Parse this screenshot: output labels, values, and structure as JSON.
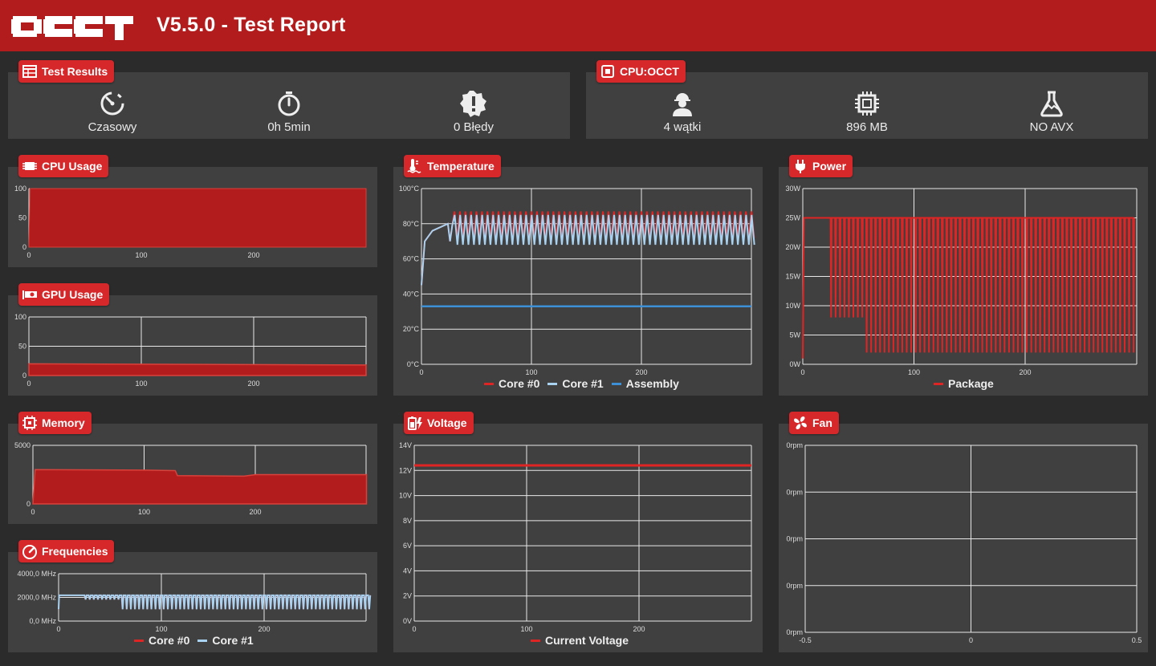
{
  "header": {
    "title": "V5.5.0 - Test Report",
    "logo": "OCCT",
    "color": "#b21c1c"
  },
  "test_results": {
    "title": "Test Results",
    "icon": "table-icon",
    "stats": [
      {
        "icon": "gauge-icon",
        "label": "Czasowy"
      },
      {
        "icon": "stopwatch-icon",
        "label": "0h 5min"
      },
      {
        "icon": "error-badge-icon",
        "label": "0 Błędy"
      }
    ]
  },
  "cpu_occt": {
    "title": "CPU:OCCT",
    "icon": "cpu-square-icon",
    "stats": [
      {
        "icon": "worker-icon",
        "label": "4 wątki"
      },
      {
        "icon": "chip-icon",
        "label": "896 MB"
      },
      {
        "icon": "flask-icon",
        "label": "NO AVX"
      }
    ]
  },
  "colors": {
    "core0": "#e02424",
    "core1": "#a9d2f0",
    "assembly": "#3d8fd6",
    "fill": "#b21c1c",
    "grid": "#e8e8e8"
  },
  "cpu_usage": {
    "title": "CPU Usage",
    "chart_data": {
      "type": "area",
      "y_ticks": [
        "100",
        "50",
        "0"
      ],
      "x_ticks": [
        "0",
        "100",
        "200"
      ],
      "xlim": [
        0,
        300
      ],
      "ylim": [
        0,
        100
      ],
      "series": [
        {
          "values": [
            [
              0,
              0
            ],
            [
              1,
              100
            ],
            [
              300,
              100
            ]
          ]
        }
      ]
    }
  },
  "gpu_usage": {
    "title": "GPU Usage",
    "chart_data": {
      "type": "area",
      "y_ticks": [
        "100",
        "50",
        "0"
      ],
      "x_ticks": [
        "0",
        "100",
        "200"
      ],
      "xlim": [
        0,
        300
      ],
      "ylim": [
        0,
        100
      ],
      "series": [
        {
          "values": [
            [
              0,
              20
            ],
            [
              300,
              18
            ]
          ]
        }
      ]
    }
  },
  "memory": {
    "title": "Memory",
    "chart_data": {
      "type": "area",
      "y_ticks": [
        "5000",
        "0"
      ],
      "x_ticks": [
        "0",
        "100",
        "200"
      ],
      "xlim": [
        0,
        300
      ],
      "ylim": [
        0,
        5800
      ],
      "series": [
        {
          "values": [
            [
              0,
              0
            ],
            [
              2,
              3400
            ],
            [
              100,
              3350
            ],
            [
              128,
              3300
            ],
            [
              130,
              2800
            ],
            [
              190,
              2750
            ],
            [
              200,
              2900
            ],
            [
              300,
              2900
            ]
          ]
        }
      ]
    }
  },
  "frequencies": {
    "title": "Frequencies",
    "chart_data": {
      "type": "line",
      "y_ticks": [
        "4000,0 MHz",
        "2000,0 MHz",
        "0,0 MHz"
      ],
      "x_ticks": [
        "0",
        "100",
        "200"
      ],
      "xlim": [
        0,
        300
      ],
      "ylim": [
        0,
        4400
      ],
      "series": [
        {
          "name": "Core #0"
        },
        {
          "name": "Core #1"
        }
      ],
      "pattern": {
        "plateau": 2400,
        "low": 1100,
        "switch_at": 58,
        "period": 4
      }
    }
  },
  "temperature": {
    "title": "Temperature",
    "chart_data": {
      "type": "line",
      "y_ticks": [
        "100°C",
        "80°C",
        "60°C",
        "40°C",
        "20°C",
        "0°C"
      ],
      "x_ticks": [
        "0",
        "100",
        "200"
      ],
      "xlim": [
        0,
        300
      ],
      "ylim": [
        0,
        100
      ],
      "series": [
        {
          "name": "Core #0"
        },
        {
          "name": "Core #1"
        },
        {
          "name": "Assembly",
          "value": 33
        }
      ],
      "pattern": {
        "high": 86,
        "low": 71,
        "period": 5
      }
    }
  },
  "power": {
    "title": "Power",
    "chart_data": {
      "type": "line",
      "y_ticks": [
        "30W",
        "25W",
        "20W",
        "15W",
        "10W",
        "5W",
        "0W"
      ],
      "x_ticks": [
        "0",
        "100",
        "200"
      ],
      "xlim": [
        0,
        300
      ],
      "ylim": [
        0,
        30
      ],
      "series": [
        {
          "name": "Package"
        }
      ],
      "pattern": {
        "high": 25,
        "low": 2,
        "period": 4
      }
    }
  },
  "voltage": {
    "title": "Voltage",
    "chart_data": {
      "type": "line",
      "y_ticks": [
        "14V",
        "12V",
        "10V",
        "8V",
        "6V",
        "4V",
        "2V",
        "0V"
      ],
      "x_ticks": [
        "0",
        "100",
        "200"
      ],
      "xlim": [
        0,
        300
      ],
      "ylim": [
        0,
        14
      ],
      "series": [
        {
          "name": "Current Voltage",
          "value": 12.4
        }
      ]
    }
  },
  "fan": {
    "title": "Fan",
    "chart_data": {
      "type": "line",
      "y_ticks": [
        "0rpm",
        "0rpm",
        "0rpm",
        "0rpm",
        "0rpm"
      ],
      "x_ticks": [
        "-0.5",
        "0",
        "0.5"
      ],
      "xlim": [
        -0.5,
        0.5
      ],
      "series": []
    }
  }
}
